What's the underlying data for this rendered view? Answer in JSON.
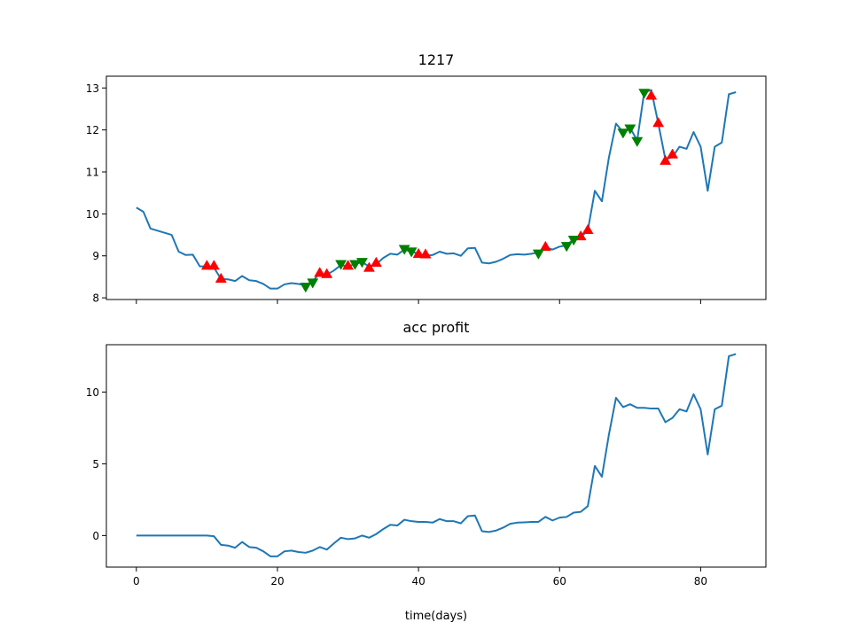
{
  "chart_data": [
    {
      "type": "line",
      "title": "1217",
      "xlabel": "",
      "ylabel": "",
      "xlim": [
        -4.25,
        89.25
      ],
      "ylim": [
        7.96,
        13.28
      ],
      "xticks": [
        0,
        20,
        40,
        60,
        80
      ],
      "yticks": [
        8,
        9,
        10,
        11,
        12,
        13
      ],
      "xticklabels_visible": false,
      "line_color": "#1f77b4",
      "series": [
        {
          "x": [
            0,
            1,
            2,
            3,
            4,
            5,
            6,
            7,
            8,
            9,
            10,
            11,
            12,
            13,
            14,
            15,
            16,
            17,
            18,
            19,
            20,
            21,
            22,
            23,
            24,
            25,
            26,
            27,
            28,
            29,
            30,
            31,
            32,
            33,
            34,
            35,
            36,
            37,
            38,
            39,
            40,
            41,
            42,
            43,
            44,
            45,
            46,
            47,
            48,
            49,
            50,
            51,
            52,
            53,
            54,
            55,
            56,
            57,
            58,
            59,
            60,
            61,
            62,
            63,
            64,
            65,
            66,
            67,
            68,
            69,
            70,
            71,
            72,
            73,
            74,
            75,
            76,
            77,
            78,
            79,
            80,
            81,
            82,
            83,
            84,
            85
          ],
          "values": [
            10.15,
            10.05,
            9.65,
            9.6,
            9.55,
            9.5,
            9.1,
            9.02,
            9.03,
            8.75,
            8.75,
            8.72,
            8.45,
            8.44,
            8.4,
            8.52,
            8.42,
            8.4,
            8.33,
            8.22,
            8.22,
            8.32,
            8.35,
            8.33,
            8.3,
            8.4,
            8.58,
            8.55,
            8.65,
            8.78,
            8.75,
            8.8,
            8.85,
            8.75,
            8.8,
            8.95,
            9.05,
            9.03,
            9.15,
            9.1,
            9.05,
            9.0,
            9.02,
            9.1,
            9.05,
            9.06,
            9.0,
            9.18,
            9.19,
            8.84,
            8.82,
            8.86,
            8.93,
            9.02,
            9.04,
            9.03,
            9.05,
            9.08,
            9.2,
            9.15,
            9.22,
            9.25,
            9.4,
            9.45,
            9.6,
            10.55,
            10.3,
            11.35,
            12.15,
            11.95,
            12.05,
            11.75,
            12.9,
            12.95,
            12.15,
            11.3,
            11.35,
            11.6,
            11.55,
            11.95,
            11.6,
            10.55,
            11.6,
            11.7,
            12.85,
            12.9
          ]
        }
      ],
      "markers": {
        "buy": {
          "shape": "triangle-up",
          "color": "#ff0000",
          "points": [
            [
              10,
              8.75
            ],
            [
              11,
              8.75
            ],
            [
              12,
              8.44
            ],
            [
              26,
              8.58
            ],
            [
              27,
              8.55
            ],
            [
              30,
              8.75
            ],
            [
              33,
              8.7
            ],
            [
              34,
              8.82
            ],
            [
              40,
              9.03
            ],
            [
              41,
              9.02
            ],
            [
              58,
              9.2
            ],
            [
              63,
              9.45
            ],
            [
              64,
              9.6
            ],
            [
              73,
              12.8
            ],
            [
              74,
              12.15
            ],
            [
              75,
              11.25
            ],
            [
              76,
              11.4
            ]
          ]
        },
        "sell": {
          "shape": "triangle-down",
          "color": "#008000",
          "points": [
            [
              24,
              8.28
            ],
            [
              25,
              8.38
            ],
            [
              29,
              8.82
            ],
            [
              31,
              8.82
            ],
            [
              32,
              8.87
            ],
            [
              38,
              9.18
            ],
            [
              39,
              9.12
            ],
            [
              57,
              9.07
            ],
            [
              61,
              9.25
            ],
            [
              62,
              9.4
            ],
            [
              69,
              11.95
            ],
            [
              70,
              12.05
            ],
            [
              71,
              11.75
            ],
            [
              72,
              12.9
            ]
          ]
        }
      }
    },
    {
      "type": "line",
      "title": "acc profit",
      "xlabel": "time(days)",
      "ylabel": "",
      "xlim": [
        -4.25,
        89.25
      ],
      "ylim": [
        -2.2,
        13.3
      ],
      "xticks": [
        0,
        20,
        40,
        60,
        80
      ],
      "yticks": [
        0,
        5,
        10
      ],
      "line_color": "#1f77b4",
      "series": [
        {
          "x": [
            0,
            1,
            2,
            3,
            4,
            5,
            6,
            7,
            8,
            9,
            10,
            11,
            12,
            13,
            14,
            15,
            16,
            17,
            18,
            19,
            20,
            21,
            22,
            23,
            24,
            25,
            26,
            27,
            28,
            29,
            30,
            31,
            32,
            33,
            34,
            35,
            36,
            37,
            38,
            39,
            40,
            41,
            42,
            43,
            44,
            45,
            46,
            47,
            48,
            49,
            50,
            51,
            52,
            53,
            54,
            55,
            56,
            57,
            58,
            59,
            60,
            61,
            62,
            63,
            64,
            65,
            66,
            67,
            68,
            69,
            70,
            71,
            72,
            73,
            74,
            75,
            76,
            77,
            78,
            79,
            80,
            81,
            82,
            83,
            84,
            85
          ],
          "values": [
            0,
            0,
            0,
            0,
            0,
            0,
            0,
            0,
            0,
            0,
            0,
            -0.05,
            -0.65,
            -0.7,
            -0.85,
            -0.45,
            -0.8,
            -0.85,
            -1.1,
            -1.45,
            -1.45,
            -1.1,
            -1.05,
            -1.15,
            -1.2,
            -1.05,
            -0.8,
            -0.98,
            -0.55,
            -0.15,
            -0.25,
            -0.2,
            0.0,
            -0.15,
            0.1,
            0.45,
            0.75,
            0.7,
            1.1,
            1.0,
            0.95,
            0.95,
            0.9,
            1.15,
            1.0,
            1.0,
            0.85,
            1.35,
            1.4,
            0.3,
            0.25,
            0.35,
            0.55,
            0.82,
            0.9,
            0.92,
            0.95,
            0.95,
            1.3,
            1.05,
            1.25,
            1.3,
            1.6,
            1.65,
            2.05,
            4.85,
            4.1,
            7.05,
            9.6,
            8.95,
            9.15,
            8.9,
            8.9,
            8.85,
            8.85,
            7.9,
            8.2,
            8.8,
            8.65,
            9.85,
            8.8,
            5.65,
            8.8,
            9.05,
            12.5,
            12.65
          ]
        }
      ]
    }
  ]
}
